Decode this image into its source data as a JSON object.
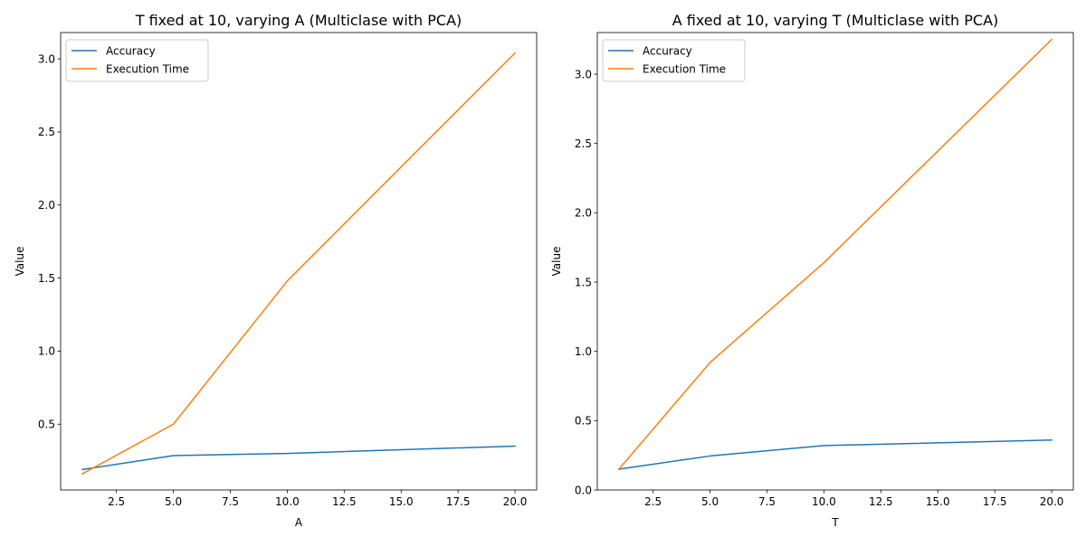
{
  "chart_data": [
    {
      "type": "line",
      "title": "T fixed at 10, varying A (Multiclase with PCA)",
      "xlabel": "A",
      "ylabel": "Value",
      "x": [
        1,
        5,
        10,
        20
      ],
      "xlim": [
        0.05,
        20.95
      ],
      "ylim": [
        0.05,
        3.18
      ],
      "xticks": [
        2.5,
        5.0,
        7.5,
        10.0,
        12.5,
        15.0,
        17.5,
        20.0
      ],
      "yticks": [
        0.5,
        1.0,
        1.5,
        2.0,
        2.5,
        3.0
      ],
      "xtick_labels": [
        "2.5",
        "5.0",
        "7.5",
        "10.0",
        "12.5",
        "15.0",
        "17.5",
        "20.0"
      ],
      "ytick_labels": [
        "0.5",
        "1.0",
        "1.5",
        "2.0",
        "2.5",
        "3.0"
      ],
      "legend_position": "top-left",
      "grid": false,
      "series": [
        {
          "name": "Accuracy",
          "color": "#1f77b4",
          "values": [
            0.19,
            0.285,
            0.3,
            0.35
          ]
        },
        {
          "name": "Execution Time",
          "color": "#ff7f0e",
          "values": [
            0.16,
            0.5,
            1.48,
            3.04
          ]
        }
      ]
    },
    {
      "type": "line",
      "title": "A fixed at 10, varying T (Multiclase with PCA)",
      "xlabel": "T",
      "ylabel": "Value",
      "x": [
        1,
        5,
        10,
        20
      ],
      "xlim": [
        0.05,
        20.95
      ],
      "ylim": [
        0.0,
        3.3
      ],
      "xticks": [
        2.5,
        5.0,
        7.5,
        10.0,
        12.5,
        15.0,
        17.5,
        20.0
      ],
      "yticks": [
        0.0,
        0.5,
        1.0,
        1.5,
        2.0,
        2.5,
        3.0
      ],
      "xtick_labels": [
        "2.5",
        "5.0",
        "7.5",
        "10.0",
        "12.5",
        "15.0",
        "17.5",
        "20.0"
      ],
      "ytick_labels": [
        "0.0",
        "0.5",
        "1.0",
        "1.5",
        "2.0",
        "2.5",
        "3.0"
      ],
      "legend_position": "top-left",
      "grid": false,
      "series": [
        {
          "name": "Accuracy",
          "color": "#1f77b4",
          "values": [
            0.15,
            0.245,
            0.32,
            0.36
          ]
        },
        {
          "name": "Execution Time",
          "color": "#ff7f0e",
          "values": [
            0.15,
            0.92,
            1.64,
            3.25
          ]
        }
      ]
    }
  ]
}
